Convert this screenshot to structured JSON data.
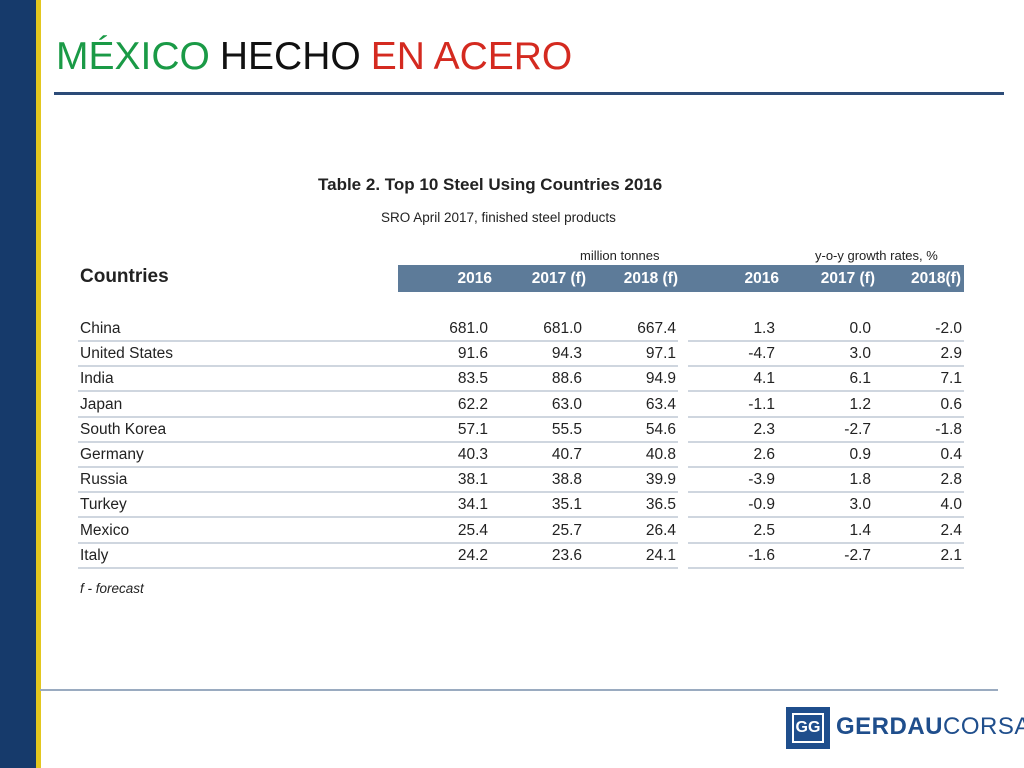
{
  "header": {
    "title_parts": [
      {
        "text": "MÉXICO",
        "color": "#1a9a46"
      },
      {
        "text": "HECHO",
        "color": "#111111"
      },
      {
        "text": "EN ACERO",
        "color": "#d42a20"
      }
    ]
  },
  "table": {
    "title": "Table 2. Top 10 Steel Using Countries 2016",
    "subtitle": "SRO April 2017, finished steel products",
    "unit_left": "million tonnes",
    "unit_right": "y-o-y growth rates, %",
    "countries_label": "Countries",
    "headers": [
      "2016",
      "2017 (f)",
      "2018 (f)",
      "2016",
      "2017 (f)",
      "2018(f)"
    ],
    "rows": [
      {
        "country": "China",
        "values": [
          "681.0",
          "681.0",
          "667.4",
          "1.3",
          "0.0",
          "-2.0"
        ]
      },
      {
        "country": "United States",
        "values": [
          "91.6",
          "94.3",
          "97.1",
          "-4.7",
          "3.0",
          "2.9"
        ]
      },
      {
        "country": "India",
        "values": [
          "83.5",
          "88.6",
          "94.9",
          "4.1",
          "6.1",
          "7.1"
        ]
      },
      {
        "country": "Japan",
        "values": [
          "62.2",
          "63.0",
          "63.4",
          "-1.1",
          "1.2",
          "0.6"
        ]
      },
      {
        "country": "South Korea",
        "values": [
          "57.1",
          "55.5",
          "54.6",
          "2.3",
          "-2.7",
          "-1.8"
        ]
      },
      {
        "country": "Germany",
        "values": [
          "40.3",
          "40.7",
          "40.8",
          "2.6",
          "0.9",
          "0.4"
        ]
      },
      {
        "country": "Russia",
        "values": [
          "38.1",
          "38.8",
          "39.9",
          "-3.9",
          "1.8",
          "2.8"
        ]
      },
      {
        "country": "Turkey",
        "values": [
          "34.1",
          "35.1",
          "36.5",
          "-0.9",
          "3.0",
          "4.0"
        ]
      },
      {
        "country": "Mexico",
        "values": [
          "25.4",
          "25.7",
          "26.4",
          "2.5",
          "1.4",
          "2.4"
        ]
      },
      {
        "country": "Italy",
        "values": [
          "24.2",
          "23.6",
          "24.1",
          "-1.6",
          "-2.7",
          "2.1"
        ]
      }
    ],
    "footnote": "f - forecast"
  },
  "logo": {
    "mark": "GG",
    "brand_bold": "GERDAU",
    "brand_light": "CORSA"
  }
}
